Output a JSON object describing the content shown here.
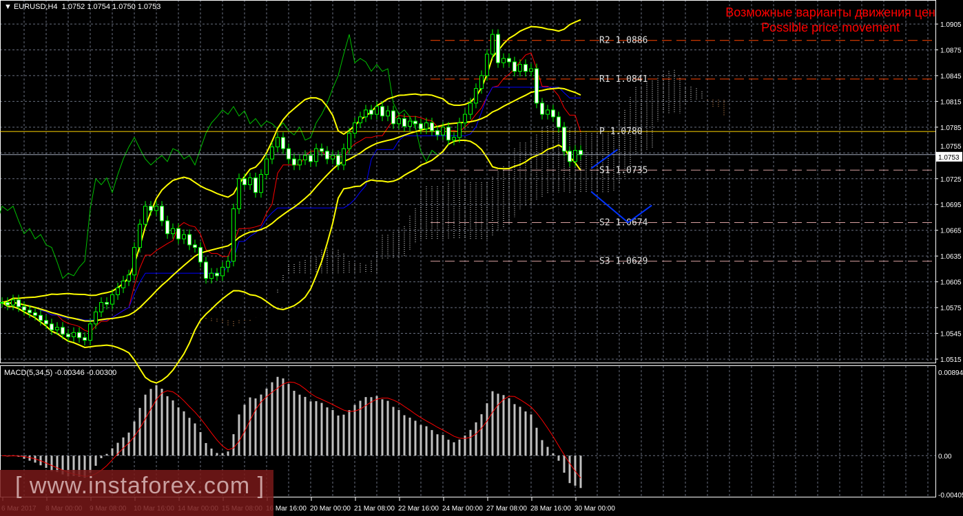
{
  "header": {
    "symbol": "EURUSD,H4",
    "ohlc": "1.0752 1.0754 1.0750 1.0753"
  },
  "title": {
    "line1": "Возможные варианты движения цен",
    "line2": "Possible price movement"
  },
  "watermark": "[ www.instaforex.com ]",
  "macd_label": "MACD(5,34,5) -0.00346 -0.00300",
  "colors": {
    "bull": "#00ff00",
    "bear_body": "#ffffff",
    "bollinger": "#ffff00",
    "tenkan": "#ff0000",
    "kijun": "#0000ff",
    "chikou": "#00c000",
    "cloud": "#ffffff",
    "cloud_b": "#f4a460",
    "pivot": "#ffd700",
    "forecast": "#0033ff",
    "resistance": "#ff4500",
    "support": "#d8a0a0",
    "macd_hist": "#c0c0c0",
    "macd_signal": "#ff0000"
  },
  "chart_data": {
    "type": "candlestick",
    "ylim": [
      1.0515,
      1.0905
    ],
    "yticks": [
      "1.0905",
      "1.0875",
      "1.0845",
      "1.0815",
      "1.0785",
      "1.0755",
      "1.0725",
      "1.0695",
      "1.0665",
      "1.0635",
      "1.0605",
      "1.0575",
      "1.0545",
      "1.0515"
    ],
    "current_price": "1.0753",
    "xticks": [
      "6 Mar 2017",
      "8 Mar 00:00",
      "9 Mar 08:00",
      "10 Mar 16:00",
      "14 Mar 00:00",
      "15 Mar 08:00",
      "16 Mar 16:00",
      "20 Mar 00:00",
      "21 Mar 08:00",
      "22 Mar 16:00",
      "24 Mar 00:00",
      "27 Mar 08:00",
      "28 Mar 16:00",
      "30 Mar 00:00"
    ],
    "closes": [
      1.0581,
      1.0578,
      1.0584,
      1.0576,
      1.0572,
      1.0569,
      1.0566,
      1.056,
      1.0556,
      1.0549,
      1.0552,
      1.0544,
      1.0541,
      1.0546,
      1.054,
      1.0537,
      1.0556,
      1.057,
      1.0581,
      1.0579,
      1.059,
      1.0598,
      1.0606,
      1.0613,
      1.0645,
      1.0672,
      1.0693,
      1.0688,
      1.0693,
      1.0676,
      1.0661,
      1.0667,
      1.0655,
      1.066,
      1.0648,
      1.0645,
      1.0628,
      1.0609,
      1.0615,
      1.0612,
      1.0622,
      1.0629,
      1.069,
      1.0725,
      1.0718,
      1.0726,
      1.0709,
      1.073,
      1.0748,
      1.0762,
      1.0773,
      1.076,
      1.0748,
      1.0741,
      1.0747,
      1.0752,
      1.0745,
      1.076,
      1.0757,
      1.0748,
      1.0752,
      1.0741,
      1.076,
      1.0778,
      1.079,
      1.0797,
      1.0805,
      1.08,
      1.0809,
      1.0798,
      1.0804,
      1.0789,
      1.0795,
      1.0786,
      1.0792,
      1.0789,
      1.0783,
      1.079,
      1.0781,
      1.0776,
      1.0785,
      1.077,
      1.0773,
      1.079,
      1.08,
      1.0813,
      1.083,
      1.0845,
      1.087,
      1.0893,
      1.086,
      1.0865,
      1.0861,
      1.085,
      1.0858,
      1.085,
      1.0853,
      1.0813,
      1.08,
      1.0805,
      1.0797,
      1.0785,
      1.0757,
      1.0745,
      1.0758,
      1.0753
    ],
    "levels": [
      {
        "name": "R2",
        "value": "1.0886",
        "type": "resistance"
      },
      {
        "name": "R1",
        "value": "1.0841",
        "type": "resistance"
      },
      {
        "name": "P",
        "value": "1.0780",
        "type": "pivot"
      },
      {
        "name": "S1",
        "value": "1.0735",
        "type": "support"
      },
      {
        "name": "S2",
        "value": "1.0674",
        "type": "support"
      },
      {
        "name": "S3",
        "value": "1.0629",
        "type": "support"
      }
    ],
    "forecast": [
      [
        [
          106.9,
          1.0737
        ],
        [
          111.7,
          1.0759
        ]
      ],
      [
        [
          106.9,
          1.071
        ],
        [
          113.6,
          1.0674
        ],
        [
          117.9,
          1.0694
        ]
      ]
    ],
    "macd": {
      "params": "5,34,5",
      "ylim": [
        -0.00405,
        0.00894
      ],
      "yticks": [
        "0.00894",
        "0.00",
        "-0.00405"
      ],
      "main": -0.00346,
      "signal": -0.003
    }
  }
}
